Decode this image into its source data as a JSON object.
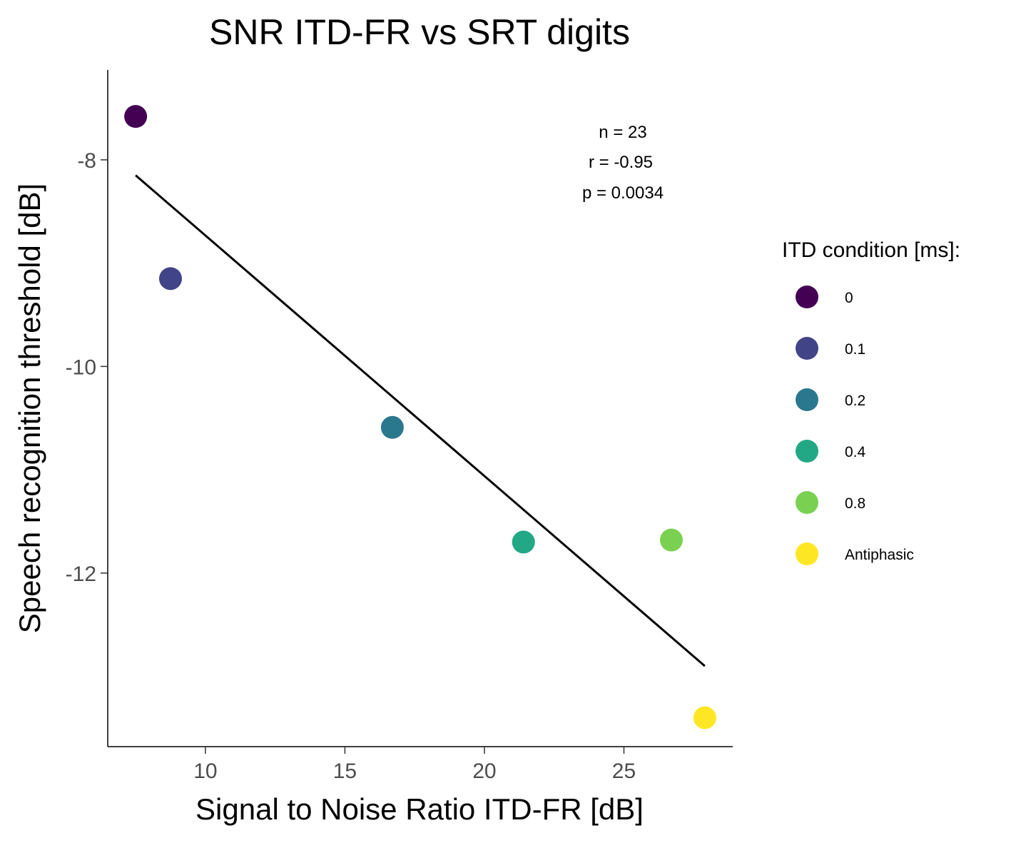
{
  "chart_data": {
    "type": "scatter",
    "title": "SNR ITD-FR vs SRT digits",
    "xlabel": "Signal to Noise Ratio ITD-FR [dB]",
    "ylabel": "Speech recognition threshold [dB]",
    "xlim": [
      6.5,
      28.9
    ],
    "ylim": [
      -13.68,
      -7.13
    ],
    "x_ticks": [
      10,
      15,
      20,
      25
    ],
    "y_ticks": [
      -8,
      -10,
      -12
    ],
    "x_tick_labels": [
      "10",
      "15",
      "20",
      "25"
    ],
    "y_tick_labels": [
      "-8",
      "-10",
      "-12"
    ],
    "points": [
      {
        "condition": "0",
        "x": 7.5,
        "y": -7.58,
        "color": "#440154"
      },
      {
        "condition": "0.1",
        "x": 8.75,
        "y": -9.15,
        "color": "#414487"
      },
      {
        "condition": "0.2",
        "x": 16.7,
        "y": -10.59,
        "color": "#2A788E"
      },
      {
        "condition": "0.4",
        "x": 21.4,
        "y": -11.7,
        "color": "#22A884"
      },
      {
        "condition": "0.8",
        "x": 26.7,
        "y": -11.68,
        "color": "#7AD151"
      },
      {
        "condition": "Antiphasic",
        "x": 27.9,
        "y": -13.4,
        "color": "#FDE725"
      }
    ],
    "regression_line": {
      "x": [
        7.5,
        27.9
      ],
      "y": [
        -8.15,
        -12.9
      ],
      "color": "#000000"
    },
    "annotations": [
      "n = 23",
      "r = -0.95",
      "p =  0.0034"
    ],
    "legend": {
      "title": "ITD condition [ms]:",
      "placement": "right",
      "entries": [
        {
          "label": "0",
          "color": "#440154"
        },
        {
          "label": "0.1",
          "color": "#414487"
        },
        {
          "label": "0.2",
          "color": "#2A788E"
        },
        {
          "label": "0.4",
          "color": "#22A884"
        },
        {
          "label": "0.8",
          "color": "#7AD151"
        },
        {
          "label": "Antiphasic",
          "color": "#FDE725"
        }
      ]
    },
    "grid": false
  }
}
